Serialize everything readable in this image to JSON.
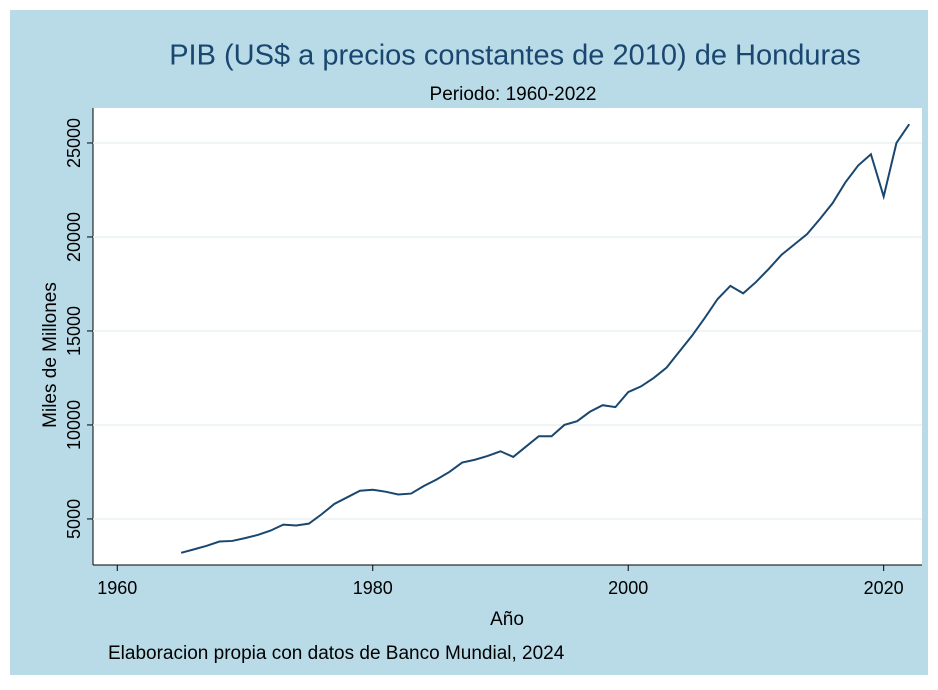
{
  "chart_data": {
    "type": "line",
    "title": "PIB (US$ a precios constantes de 2010) de Honduras",
    "subtitle": "Periodo: 1960-2022",
    "x_label": "Año",
    "y_label": "Miles de Millones",
    "caption": "Elaboracion propia con datos de Banco Mundial, 2024",
    "x": [
      1965,
      1966,
      1967,
      1968,
      1969,
      1970,
      1971,
      1972,
      1973,
      1974,
      1975,
      1976,
      1977,
      1978,
      1979,
      1980,
      1981,
      1982,
      1983,
      1984,
      1985,
      1986,
      1987,
      1988,
      1989,
      1990,
      1991,
      1992,
      1993,
      1994,
      1995,
      1996,
      1997,
      1998,
      1999,
      2000,
      2001,
      2002,
      2003,
      2004,
      2005,
      2006,
      2007,
      2008,
      2009,
      2010,
      2011,
      2012,
      2013,
      2014,
      2015,
      2016,
      2017,
      2018,
      2019,
      2020,
      2021,
      2022
    ],
    "series": [
      {
        "name": "PIB",
        "color": "#1a476f",
        "values": [
          3200,
          3380,
          3570,
          3800,
          3830,
          3980,
          4150,
          4380,
          4700,
          4650,
          4750,
          5250,
          5800,
          6150,
          6500,
          6550,
          6450,
          6300,
          6350,
          6750,
          7100,
          7500,
          8000,
          8150,
          8350,
          8600,
          8300,
          8850,
          9400,
          9400,
          10000,
          10200,
          10700,
          11050,
          10950,
          11750,
          12050,
          12500,
          13050,
          13900,
          14750,
          15700,
          16700,
          17400,
          17000,
          17600,
          18300,
          19050,
          19600,
          20150,
          20950,
          21800,
          22900,
          23800,
          24400,
          22150,
          25000,
          26000
        ]
      }
    ],
    "xlim": [
      1958.1,
      2023
    ],
    "xticks": [
      1960,
      1980,
      2000,
      2020
    ],
    "ylim": [
      2550,
      26860
    ],
    "yticks": [
      5000,
      10000,
      15000,
      20000,
      25000
    ],
    "grid": true
  }
}
